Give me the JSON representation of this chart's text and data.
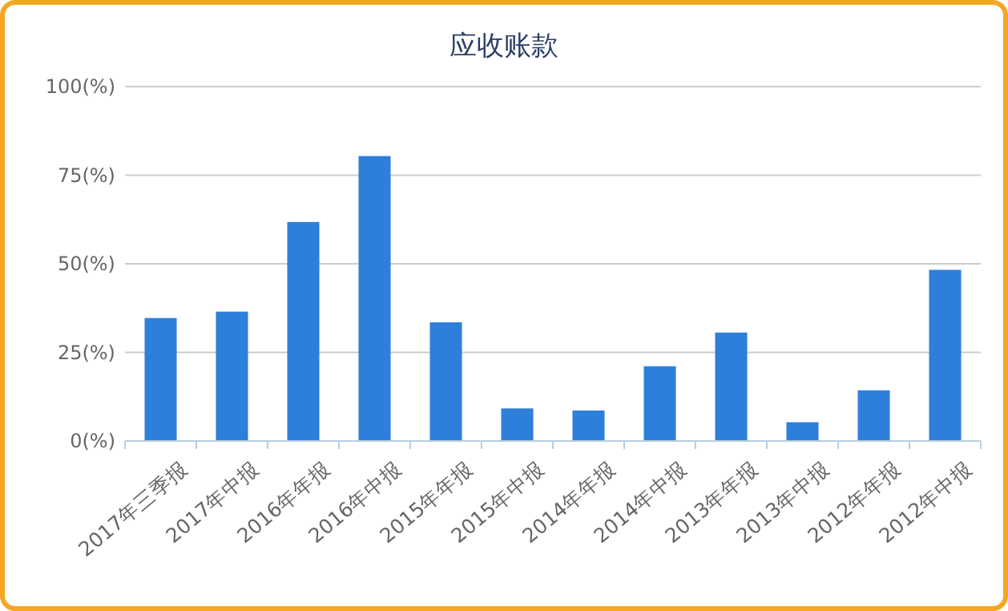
{
  "chart_data": {
    "type": "bar",
    "title": "应收账款",
    "categories": [
      "2017年三季报",
      "2017年中报",
      "2016年年报",
      "2016年中报",
      "2015年年报",
      "2015年中报",
      "2014年年报",
      "2014年中报",
      "2013年年报",
      "2013年中报",
      "2012年年报",
      "2012年中报"
    ],
    "values": [
      34.7,
      36.5,
      61.8,
      80.4,
      33.5,
      9.2,
      8.6,
      21.1,
      30.6,
      5.3,
      14.3,
      48.3
    ],
    "color": "#2e7fd9",
    "ylim": [
      0,
      100
    ],
    "yticks": [
      {
        "value": 0,
        "label": "0(%)"
      },
      {
        "value": 25,
        "label": "25(%)"
      },
      {
        "value": 50,
        "label": "50(%)"
      },
      {
        "value": 75,
        "label": "75(%)"
      },
      {
        "value": 100,
        "label": "100(%)"
      }
    ],
    "grid": "y"
  }
}
